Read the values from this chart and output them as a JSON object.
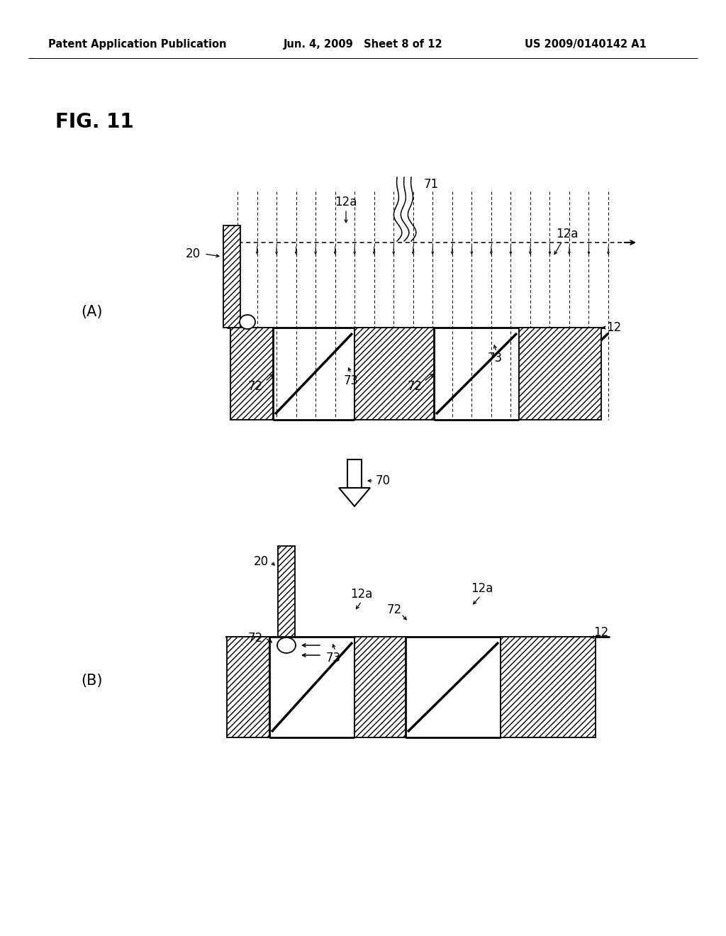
{
  "header_left": "Patent Application Publication",
  "header_center": "Jun. 4, 2009   Sheet 8 of 12",
  "header_right": "US 2009/0140142 A1",
  "bg_color": "#ffffff",
  "fig_title": "FIG. 11",
  "label_A": "(A)",
  "label_B": "(B)",
  "lw_main": 1.8,
  "lw_thin": 1.0,
  "lw_dashed": 0.9
}
